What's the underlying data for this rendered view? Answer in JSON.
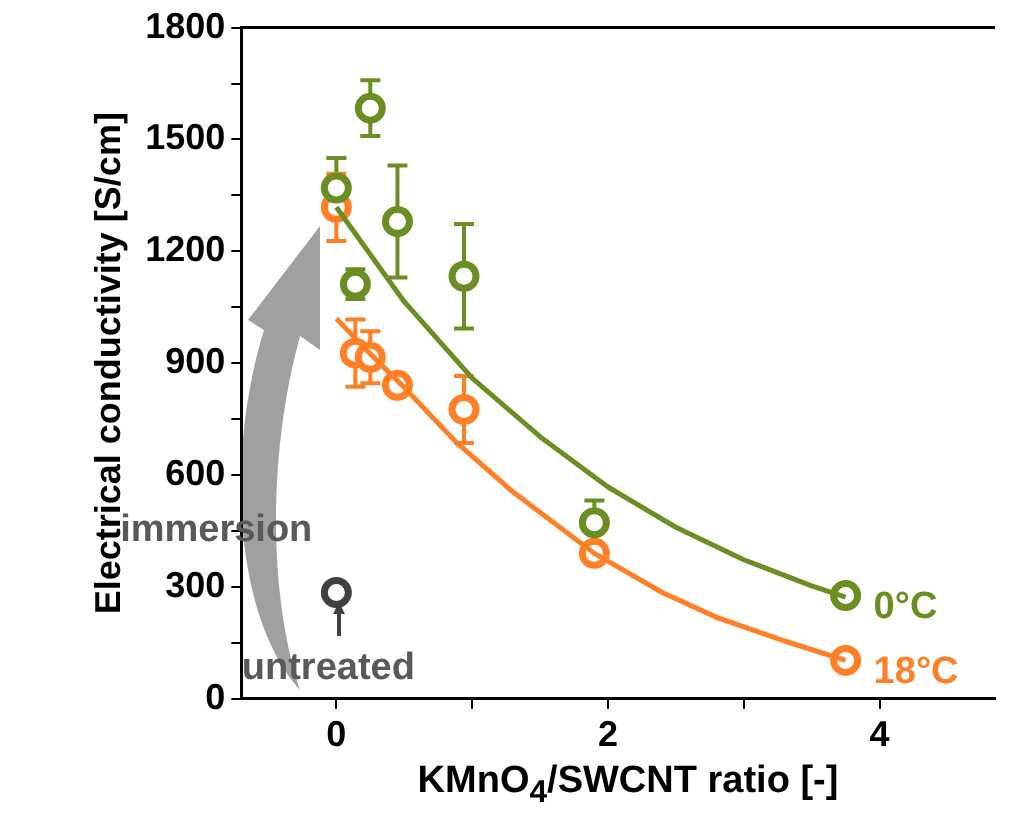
{
  "chart_data": {
    "type": "scatter",
    "xlabel": "KMnO$_{4}$/SWCNT ratio [-]",
    "ylabel": "Electrical conductivity [S/cm]",
    "xlim": [
      -0.7,
      4.85
    ],
    "xticks": [
      0,
      {
        "value": 1,
        "label": null
      },
      2,
      {
        "value": 3,
        "label": null
      },
      4
    ],
    "ylim": [
      0,
      1800
    ],
    "yticks": [
      0,
      {
        "value": 150,
        "label": null
      },
      300,
      {
        "value": 450,
        "label": null
      },
      600,
      {
        "value": 750,
        "label": null
      },
      900,
      {
        "value": 1050,
        "label": null
      },
      1200,
      {
        "value": 1350,
        "label": null
      },
      1500,
      {
        "value": 1650,
        "label": null
      },
      1800
    ],
    "grid": false,
    "legend": false,
    "marker": "circle",
    "series": [
      {
        "type": "line",
        "color": "#6b8e23",
        "x": [
          0,
          0.5,
          1,
          1.5,
          2,
          2.5,
          3,
          3.5,
          3.75
        ],
        "values": [
          1318,
          1065,
          860,
          703,
          568,
          460,
          373,
          303,
          273
        ],
        "marker": "none"
      },
      {
        "type": "line",
        "color": "#ff7f27",
        "x": [
          0,
          0.25,
          0.5,
          0.88,
          1.3,
          1.9,
          2.4,
          2.81,
          3.3,
          3.75
        ],
        "values": [
          1020,
          925,
          835,
          689,
          555,
          390,
          285,
          217,
          155,
          103
        ],
        "marker": "none"
      },
      {
        "name": "0°C",
        "color": "#6b8e23",
        "x": [
          0,
          0.14,
          0.25,
          0.45,
          0.94,
          1.9,
          3.75
        ],
        "values": [
          1370,
          1112,
          1584,
          1280,
          1133,
          472,
          277
        ],
        "errors": [
          80,
          40,
          75,
          150,
          140,
          60,
          null
        ]
      },
      {
        "name": "18°C",
        "color": "#ff7f27",
        "x": [
          0,
          0.14,
          0.25,
          0.45,
          0.94,
          1.9,
          3.75
        ],
        "values": [
          1318,
          927,
          916,
          841,
          776,
          390,
          103
        ],
        "errors": [
          90,
          90,
          70,
          null,
          90,
          null,
          null
        ]
      },
      {
        "color": "#404040",
        "x": [
          0
        ],
        "values": [
          285
        ]
      }
    ],
    "annotations": [
      "immersion",
      {
        "text": "untreated",
        "x": 0,
        "y": 285
      }
    ]
  }
}
